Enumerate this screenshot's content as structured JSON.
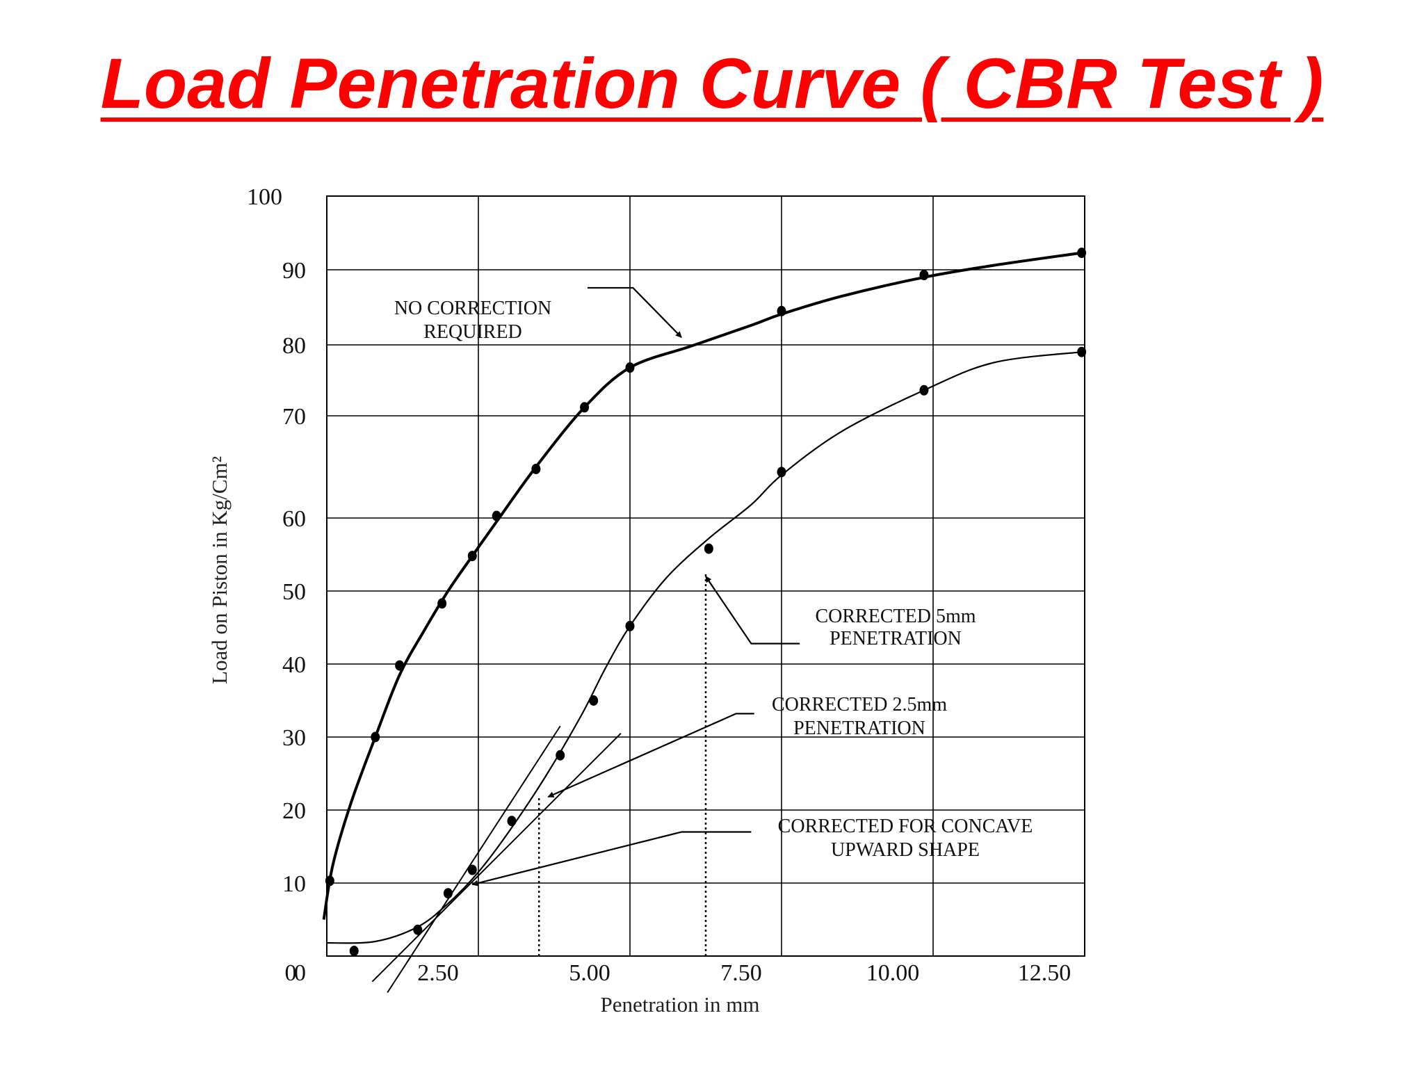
{
  "slide": {
    "title": "Load Penetration Curve ( CBR  Test )",
    "title_color": "#ff0000"
  },
  "chart_data": {
    "type": "line",
    "title": "",
    "xlabel": "Penetration in mm",
    "ylabel": "Load on Piston in Kg/Cm²",
    "xlim": [
      0,
      12.5
    ],
    "ylim": [
      0,
      100
    ],
    "grid": true,
    "x_ticks": [
      0,
      2.5,
      5.0,
      7.5,
      10.0,
      12.5
    ],
    "x_tick_labels": [
      "0",
      "2.50",
      "5.00",
      "7.50",
      "10.00",
      "12.50"
    ],
    "y_ticks": [
      0,
      10,
      20,
      30,
      40,
      50,
      60,
      70,
      80,
      90,
      100
    ],
    "y_tick_labels": [
      "0",
      "10",
      "20",
      "30",
      "40",
      "50",
      "60",
      "70",
      "80",
      "90",
      "100"
    ],
    "series": [
      {
        "name": "",
        "style": "thick",
        "points": [
          [
            0.05,
            10.3
          ],
          [
            0.8,
            30.0
          ],
          [
            1.2,
            39.8
          ],
          [
            1.9,
            48.3
          ],
          [
            2.4,
            54.8
          ],
          [
            2.8,
            60.2
          ],
          [
            3.45,
            64.8
          ],
          [
            4.25,
            71.2
          ],
          [
            5.0,
            76.8
          ],
          [
            7.5,
            84.5
          ],
          [
            9.85,
            89.3
          ],
          [
            12.45,
            92.3
          ]
        ],
        "curve": [
          [
            -0.05,
            5.0
          ],
          [
            0.1,
            12.5
          ],
          [
            0.4,
            21.0
          ],
          [
            0.8,
            30.0
          ],
          [
            1.2,
            38.5
          ],
          [
            1.6,
            44.5
          ],
          [
            2.0,
            50.0
          ],
          [
            2.4,
            54.8
          ],
          [
            2.8,
            59.5
          ],
          [
            3.45,
            65.0
          ],
          [
            4.25,
            71.2
          ],
          [
            5.0,
            76.8
          ],
          [
            6.0,
            79.8
          ],
          [
            7.0,
            82.6
          ],
          [
            7.5,
            84.1
          ],
          [
            8.5,
            86.5
          ],
          [
            9.85,
            89.0
          ],
          [
            11.0,
            90.6
          ],
          [
            12.45,
            92.3
          ]
        ]
      },
      {
        "name": "",
        "style": "thin",
        "points": [
          [
            0.45,
            0.7
          ],
          [
            1.5,
            3.6
          ],
          [
            2.0,
            8.6
          ],
          [
            2.4,
            11.8
          ],
          [
            3.05,
            18.5
          ],
          [
            3.85,
            27.5
          ],
          [
            4.4,
            35.0
          ],
          [
            5.0,
            45.2
          ],
          [
            6.3,
            55.8
          ],
          [
            7.5,
            64.5
          ],
          [
            9.85,
            73.6
          ],
          [
            12.45,
            79.0
          ]
        ],
        "curve": [
          [
            0.0,
            1.8
          ],
          [
            0.8,
            2.0
          ],
          [
            1.5,
            4.0
          ],
          [
            2.0,
            7.2
          ],
          [
            2.5,
            11.5
          ],
          [
            3.0,
            17.0
          ],
          [
            3.6,
            24.5
          ],
          [
            4.2,
            33.0
          ],
          [
            4.6,
            39.5
          ],
          [
            5.0,
            45.2
          ],
          [
            5.6,
            51.8
          ],
          [
            6.3,
            57.2
          ],
          [
            7.0,
            61.3
          ],
          [
            7.5,
            64.2
          ],
          [
            8.5,
            68.5
          ],
          [
            9.85,
            73.6
          ],
          [
            11.0,
            77.5
          ],
          [
            12.45,
            79.0
          ]
        ]
      }
    ],
    "tangent_lines": [
      {
        "from": [
          0.75,
          -3.5
        ],
        "to": [
          4.85,
          30.5
        ],
        "style": "solid"
      },
      {
        "from": [
          1.0,
          -5.0
        ],
        "to": [
          3.85,
          31.5
        ],
        "style": "solid"
      }
    ],
    "dotted_lines": [
      {
        "from": [
          3.5,
          0
        ],
        "to": [
          3.5,
          22.0
        ]
      },
      {
        "from": [
          6.25,
          0
        ],
        "to": [
          6.25,
          52.5
        ]
      }
    ],
    "annotations": [
      {
        "id": "no-correction",
        "lines": [
          "NO CORRECTION",
          "REQUIRED"
        ],
        "arrow_path": [
          [
            4.3,
            87.6
          ],
          [
            5.05,
            87.6
          ],
          [
            5.85,
            81.0
          ]
        ]
      },
      {
        "id": "corrected-5mm",
        "lines": [
          "CORRECTED 5mm",
          "PENETRATION"
        ],
        "arrow_path": [
          [
            7.8,
            42.8
          ],
          [
            7.0,
            42.8
          ],
          [
            6.25,
            52.0
          ]
        ]
      },
      {
        "id": "corrected-2-5mm",
        "lines": [
          "CORRECTED 2.5mm",
          "PENETRATION"
        ],
        "arrow_path": [
          [
            7.05,
            33.2
          ],
          [
            6.75,
            33.2
          ],
          [
            3.65,
            21.8
          ]
        ]
      },
      {
        "id": "corrected-concave",
        "lines": [
          "CORRECTED FOR CONCAVE",
          "UPWARD SHAPE"
        ],
        "arrow_path": [
          [
            7.0,
            17.0
          ],
          [
            5.85,
            17.0
          ],
          [
            2.4,
            9.8
          ]
        ]
      }
    ]
  }
}
